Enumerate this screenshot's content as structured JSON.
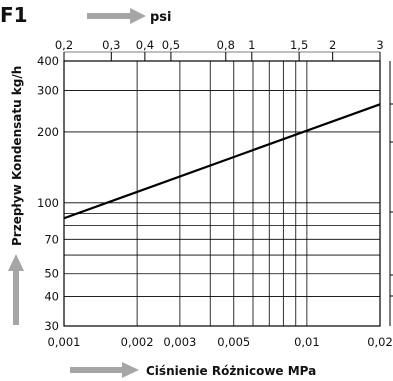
{
  "figure": {
    "label": "F1"
  },
  "chart_data": {
    "type": "line",
    "top_axis": {
      "label": "psi",
      "scale": "log",
      "range": [
        0.2,
        3
      ],
      "ticks": [
        {
          "value": 0.2,
          "label": "0,2"
        },
        {
          "value": 0.3,
          "label": "0,3"
        },
        {
          "value": 0.4,
          "label": "0,4"
        },
        {
          "value": 0.5,
          "label": "0,5"
        },
        {
          "value": 0.8,
          "label": "0,8"
        },
        {
          "value": 1,
          "label": "1"
        },
        {
          "value": 1.5,
          "label": "1,5"
        },
        {
          "value": 2,
          "label": "2"
        },
        {
          "value": 3,
          "label": "3"
        }
      ]
    },
    "x_axis": {
      "label": "Ciśnienie Różnicowe MPa",
      "scale": "log",
      "range": [
        0.001,
        0.02
      ],
      "ticks": [
        {
          "value": 0.001,
          "label": "0,001"
        },
        {
          "value": 0.002,
          "label": "0,002"
        },
        {
          "value": 0.003,
          "label": "0,003"
        },
        {
          "value": 0.005,
          "label": "0,005"
        },
        {
          "value": 0.01,
          "label": "0,01"
        },
        {
          "value": 0.02,
          "label": "0,02"
        }
      ]
    },
    "y_axis": {
      "label": "Przepływ Kondensatu kg/h",
      "scale": "log",
      "range": [
        30,
        400
      ],
      "ticks": [
        {
          "value": 30,
          "label": "30"
        },
        {
          "value": 40,
          "label": "40"
        },
        {
          "value": 50,
          "label": "50"
        },
        {
          "value": 70,
          "label": "70"
        },
        {
          "value": 100,
          "label": "100"
        },
        {
          "value": 200,
          "label": "200"
        },
        {
          "value": 300,
          "label": "300"
        },
        {
          "value": 400,
          "label": "400"
        }
      ]
    },
    "grid": true,
    "series": [
      {
        "points": [
          {
            "x": 0.001,
            "y": 86
          },
          {
            "x": 0.02,
            "y": 262
          }
        ],
        "color": "#000000"
      }
    ]
  }
}
